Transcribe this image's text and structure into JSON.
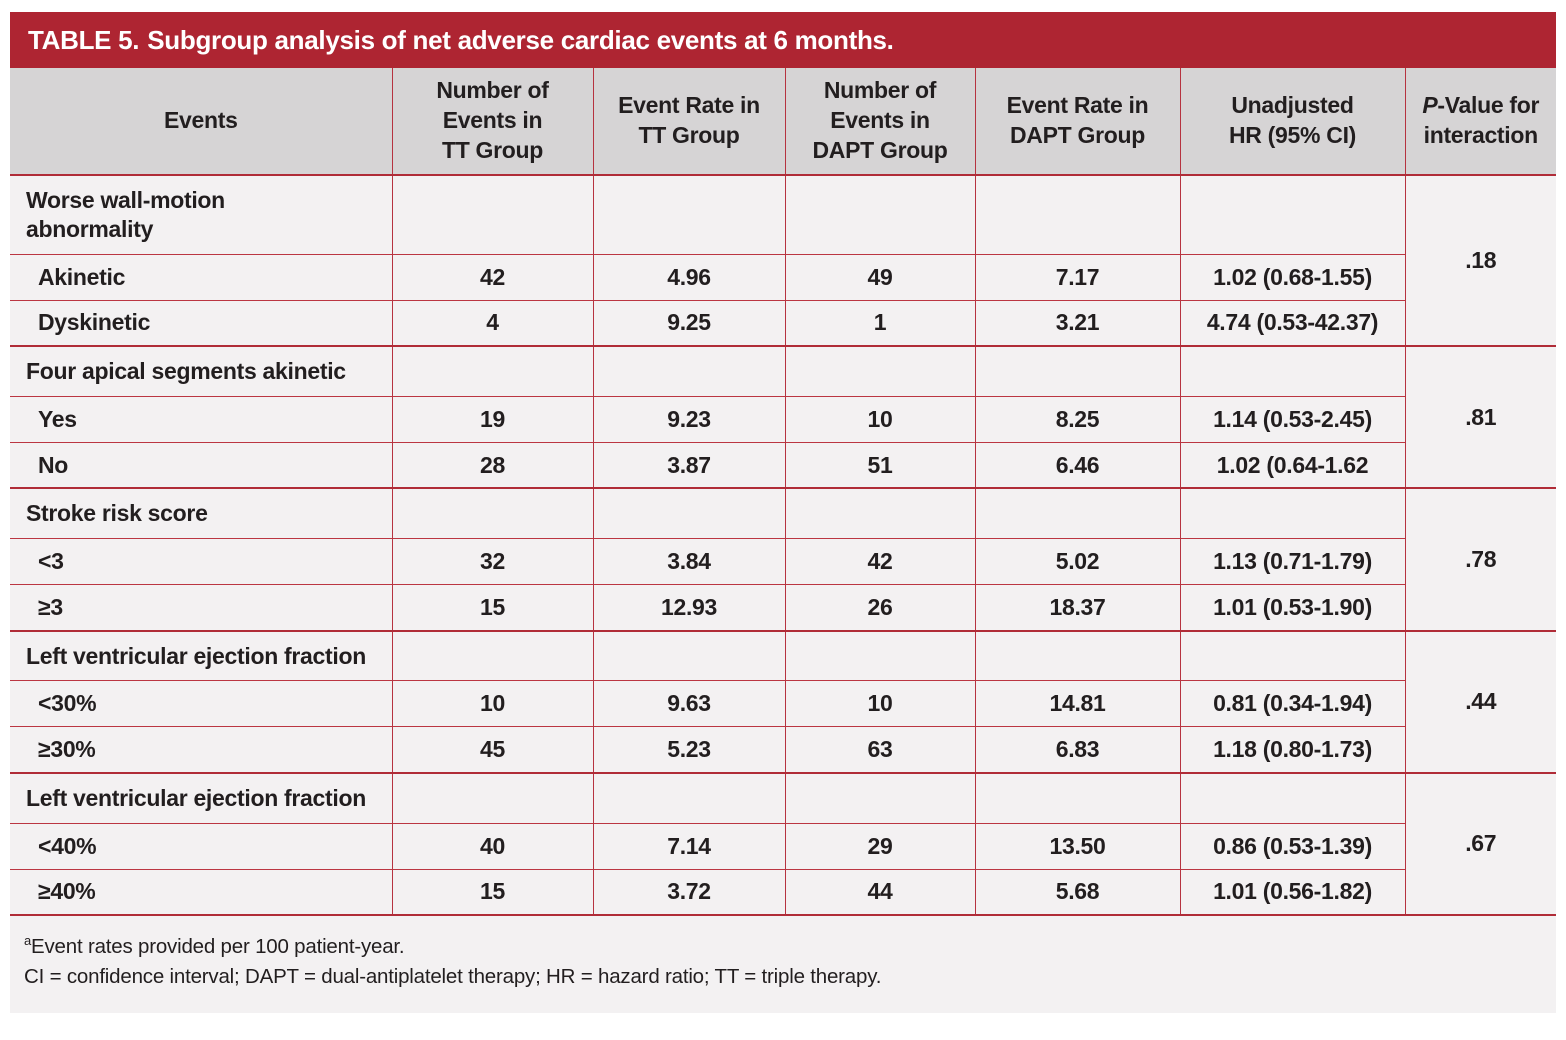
{
  "title": {
    "prefix": "TABLE 5.",
    "text": "Subgroup analysis of net adverse cardiac events at 6 months."
  },
  "colors": {
    "title_bar": "#ae2532",
    "border_red": "#b63340",
    "header_bg": "#d6d4d5",
    "body_bg": "#f3f1f2",
    "text": "#221e1f"
  },
  "columns": {
    "events": "Events",
    "n_tt": "Number of\nEvents in\nTT Group",
    "rate_tt": "Event Rate  in\nTT Group",
    "n_dapt": "Number of\nEvents in\nDAPT Group",
    "rate_dapt": "Event Rate in\nDAPT Group",
    "hr": "Unadjusted\nHR (95% CI)",
    "p": "P-Value for\ninteraction"
  },
  "groups": [
    {
      "label": "Worse wall-motion\nabnormality",
      "p_value": ".18",
      "rows": [
        {
          "label": "Akinetic",
          "values": [
            "42",
            "4.96",
            "49",
            "7.17",
            "1.02 (0.68-1.55)"
          ]
        },
        {
          "label": "Dyskinetic",
          "values": [
            "4",
            "9.25",
            "1",
            "3.21",
            "4.74 (0.53-42.37)"
          ]
        }
      ]
    },
    {
      "label": "Four apical segments akinetic",
      "p_value": ".81",
      "rows": [
        {
          "label": "Yes",
          "values": [
            "19",
            "9.23",
            "10",
            "8.25",
            "1.14 (0.53-2.45)"
          ]
        },
        {
          "label": "No",
          "values": [
            "28",
            "3.87",
            "51",
            "6.46",
            "1.02 (0.64-1.62"
          ]
        }
      ]
    },
    {
      "label": "Stroke risk score",
      "p_value": ".78",
      "rows": [
        {
          "label": "<3",
          "values": [
            "32",
            "3.84",
            "42",
            "5.02",
            "1.13 (0.71-1.79)"
          ]
        },
        {
          "label": "≥3",
          "values": [
            "15",
            "12.93",
            "26",
            "18.37",
            "1.01 (0.53-1.90)"
          ]
        }
      ]
    },
    {
      "label": "Left ventricular ejection fraction",
      "p_value": ".44",
      "rows": [
        {
          "label": "<30%",
          "values": [
            "10",
            "9.63",
            "10",
            "14.81",
            "0.81 (0.34-1.94)"
          ]
        },
        {
          "label": "≥30%",
          "values": [
            "45",
            "5.23",
            "63",
            "6.83",
            "1.18 (0.80-1.73)"
          ]
        }
      ]
    },
    {
      "label": "Left ventricular ejection fraction",
      "p_value": ".67",
      "rows": [
        {
          "label": "<40%",
          "values": [
            "40",
            "7.14",
            "29",
            "13.50",
            "0.86 (0.53-1.39)"
          ]
        },
        {
          "label": "≥40%",
          "values": [
            "15",
            "3.72",
            "44",
            "5.68",
            "1.01 (0.56-1.82)"
          ]
        }
      ]
    }
  ],
  "footnotes": {
    "marker": "a",
    "line1": "Event rates provided per 100 patient-year.",
    "line2": "CI = confidence interval; DAPT = dual-antiplatelet therapy; HR = hazard ratio; TT = triple therapy."
  }
}
